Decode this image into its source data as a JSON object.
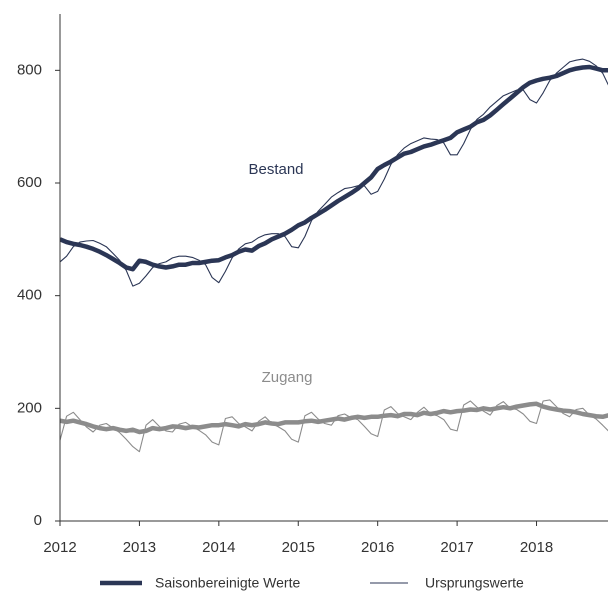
{
  "chart_data": {
    "type": "line",
    "x": [
      2012,
      2012.083,
      2012.167,
      2012.25,
      2012.333,
      2012.417,
      2012.5,
      2012.583,
      2012.667,
      2012.75,
      2012.833,
      2012.917,
      2013,
      2013.083,
      2013.167,
      2013.25,
      2013.333,
      2013.417,
      2013.5,
      2013.583,
      2013.667,
      2013.75,
      2013.833,
      2013.917,
      2014,
      2014.083,
      2014.167,
      2014.25,
      2014.333,
      2014.417,
      2014.5,
      2014.583,
      2014.667,
      2014.75,
      2014.833,
      2014.917,
      2015,
      2015.083,
      2015.167,
      2015.25,
      2015.333,
      2015.417,
      2015.5,
      2015.583,
      2015.667,
      2015.75,
      2015.833,
      2015.917,
      2016,
      2016.083,
      2016.167,
      2016.25,
      2016.333,
      2016.417,
      2016.5,
      2016.583,
      2016.667,
      2016.75,
      2016.833,
      2016.917,
      2017,
      2017.083,
      2017.167,
      2017.25,
      2017.333,
      2017.417,
      2017.5,
      2017.583,
      2017.667,
      2017.75,
      2017.833,
      2017.917,
      2018,
      2018.083,
      2018.167,
      2018.25,
      2018.333,
      2018.417,
      2018.5,
      2018.583,
      2018.667,
      2018.75,
      2018.833,
      2018.917
    ],
    "legend": [
      "Saisonbereinigte Werte",
      "Ursprungswerte"
    ],
    "series": [
      {
        "name": "Bestand",
        "color": "#2b3655",
        "adjusted": [
          500,
          495,
          492,
          490,
          487,
          483,
          478,
          472,
          465,
          458,
          450,
          447,
          462,
          460,
          455,
          452,
          450,
          452,
          455,
          455,
          458,
          458,
          460,
          462,
          463,
          468,
          472,
          478,
          482,
          480,
          488,
          493,
          500,
          505,
          510,
          517,
          525,
          530,
          538,
          545,
          552,
          560,
          568,
          575,
          582,
          590,
          600,
          610,
          625,
          632,
          638,
          645,
          652,
          655,
          660,
          665,
          668,
          672,
          676,
          680,
          690,
          695,
          700,
          708,
          712,
          720,
          730,
          740,
          750,
          760,
          770,
          778,
          782,
          785,
          787,
          790,
          795,
          800,
          803,
          805,
          806,
          803,
          800,
          800
        ],
        "original": [
          460,
          470,
          487,
          495,
          497,
          498,
          493,
          487,
          475,
          463,
          445,
          417,
          422,
          435,
          450,
          457,
          460,
          467,
          470,
          470,
          468,
          463,
          455,
          432,
          423,
          443,
          467,
          483,
          492,
          495,
          503,
          508,
          510,
          510,
          505,
          487,
          485,
          505,
          533,
          550,
          562,
          575,
          583,
          590,
          592,
          595,
          595,
          580,
          585,
          607,
          633,
          650,
          662,
          670,
          675,
          680,
          678,
          677,
          671,
          650,
          650,
          670,
          695,
          713,
          722,
          735,
          745,
          755,
          760,
          765,
          765,
          748,
          742,
          760,
          782,
          795,
          805,
          815,
          818,
          820,
          816,
          808,
          795,
          770
        ]
      },
      {
        "name": "Zugang",
        "color": "#8c8c8c",
        "adjusted": [
          178,
          176,
          178,
          175,
          172,
          168,
          165,
          163,
          165,
          162,
          160,
          162,
          158,
          160,
          165,
          163,
          165,
          168,
          167,
          165,
          167,
          166,
          168,
          170,
          170,
          172,
          170,
          168,
          172,
          170,
          172,
          175,
          173,
          172,
          175,
          175,
          175,
          177,
          178,
          176,
          178,
          180,
          182,
          180,
          183,
          185,
          183,
          185,
          185,
          187,
          188,
          186,
          190,
          190,
          188,
          192,
          190,
          192,
          195,
          193,
          195,
          196,
          198,
          197,
          200,
          198,
          200,
          202,
          200,
          203,
          205,
          207,
          208,
          203,
          200,
          198,
          196,
          195,
          193,
          190,
          188,
          186,
          185,
          188
        ],
        "original": [
          143,
          186,
          193,
          180,
          167,
          158,
          170,
          173,
          165,
          157,
          145,
          132,
          123,
          170,
          180,
          168,
          160,
          158,
          172,
          175,
          167,
          161,
          153,
          140,
          135,
          182,
          185,
          173,
          167,
          160,
          177,
          185,
          173,
          167,
          160,
          145,
          140,
          187,
          193,
          181,
          173,
          170,
          187,
          190,
          183,
          180,
          168,
          155,
          150,
          197,
          203,
          191,
          185,
          180,
          193,
          202,
          190,
          187,
          180,
          163,
          160,
          206,
          213,
          202,
          195,
          188,
          205,
          212,
          200,
          198,
          190,
          177,
          173,
          213,
          215,
          203,
          191,
          185,
          198,
          200,
          188,
          181,
          170,
          158
        ]
      }
    ],
    "xlim": [
      2012,
      2018.9
    ],
    "xticks": [
      2012,
      2013,
      2014,
      2015,
      2016,
      2017,
      2018
    ],
    "ylim": [
      0,
      900
    ],
    "yticks": [
      0,
      200,
      400,
      600,
      800
    ]
  }
}
